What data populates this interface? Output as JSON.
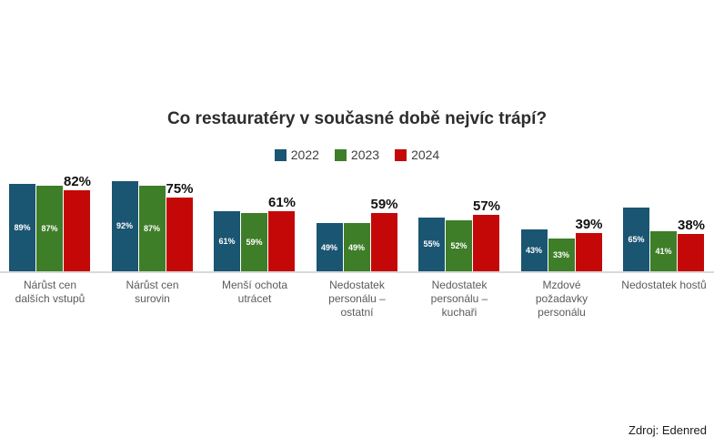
{
  "source": "Zdroj: Edenred",
  "colors": {
    "background": "#ffffff",
    "series_2022": "#1a5572",
    "series_2023": "#3e7e28",
    "series_2024": "#c40808",
    "axis_line": "#d9d9d9",
    "inside_value_label": "#ffffff",
    "above_value_label": "#111111",
    "category_label": "#5b5b5b",
    "title": "#2d2d2d",
    "legend_label": "#404040"
  },
  "chart_data": {
    "type": "bar",
    "title": "Co restauratéry v současné době nejvíc trápí?",
    "categories": [
      "Nárůst cen dalších vstupů",
      "Nárůst cen surovin",
      "Menší ochota utrácet",
      "Nedostatek personálu – ostatní",
      "Nedostatek personálu – kuchaři",
      "Mzdové požadavky personálu",
      "Nedostatek hostů"
    ],
    "category_lines": [
      [
        "Nárůst cen",
        "dalších vstupů"
      ],
      [
        "Nárůst cen",
        "surovin"
      ],
      [
        "Menší ochota",
        "utrácet"
      ],
      [
        "Nedostatek",
        "personálu –",
        "ostatní"
      ],
      [
        "Nedostatek",
        "personálu –",
        "kuchaři"
      ],
      [
        "Mzdové",
        "požadavky",
        "personálu"
      ],
      [
        "Nedostatek hostů"
      ]
    ],
    "series": [
      {
        "name": "2022",
        "color": "#1a5572",
        "values": [
          89,
          92,
          61,
          49,
          55,
          43,
          65
        ],
        "value_labels": "inside"
      },
      {
        "name": "2023",
        "color": "#3e7e28",
        "values": [
          87,
          87,
          59,
          49,
          52,
          33,
          41
        ],
        "value_labels": "inside"
      },
      {
        "name": "2024",
        "color": "#c40808",
        "values": [
          82,
          75,
          61,
          59,
          57,
          39,
          38
        ],
        "value_labels": "above"
      }
    ],
    "value_suffix": "%",
    "ylim": [
      0,
      100
    ],
    "grid": false,
    "legend_position": "top-center",
    "xlabel": "",
    "ylabel": ""
  }
}
